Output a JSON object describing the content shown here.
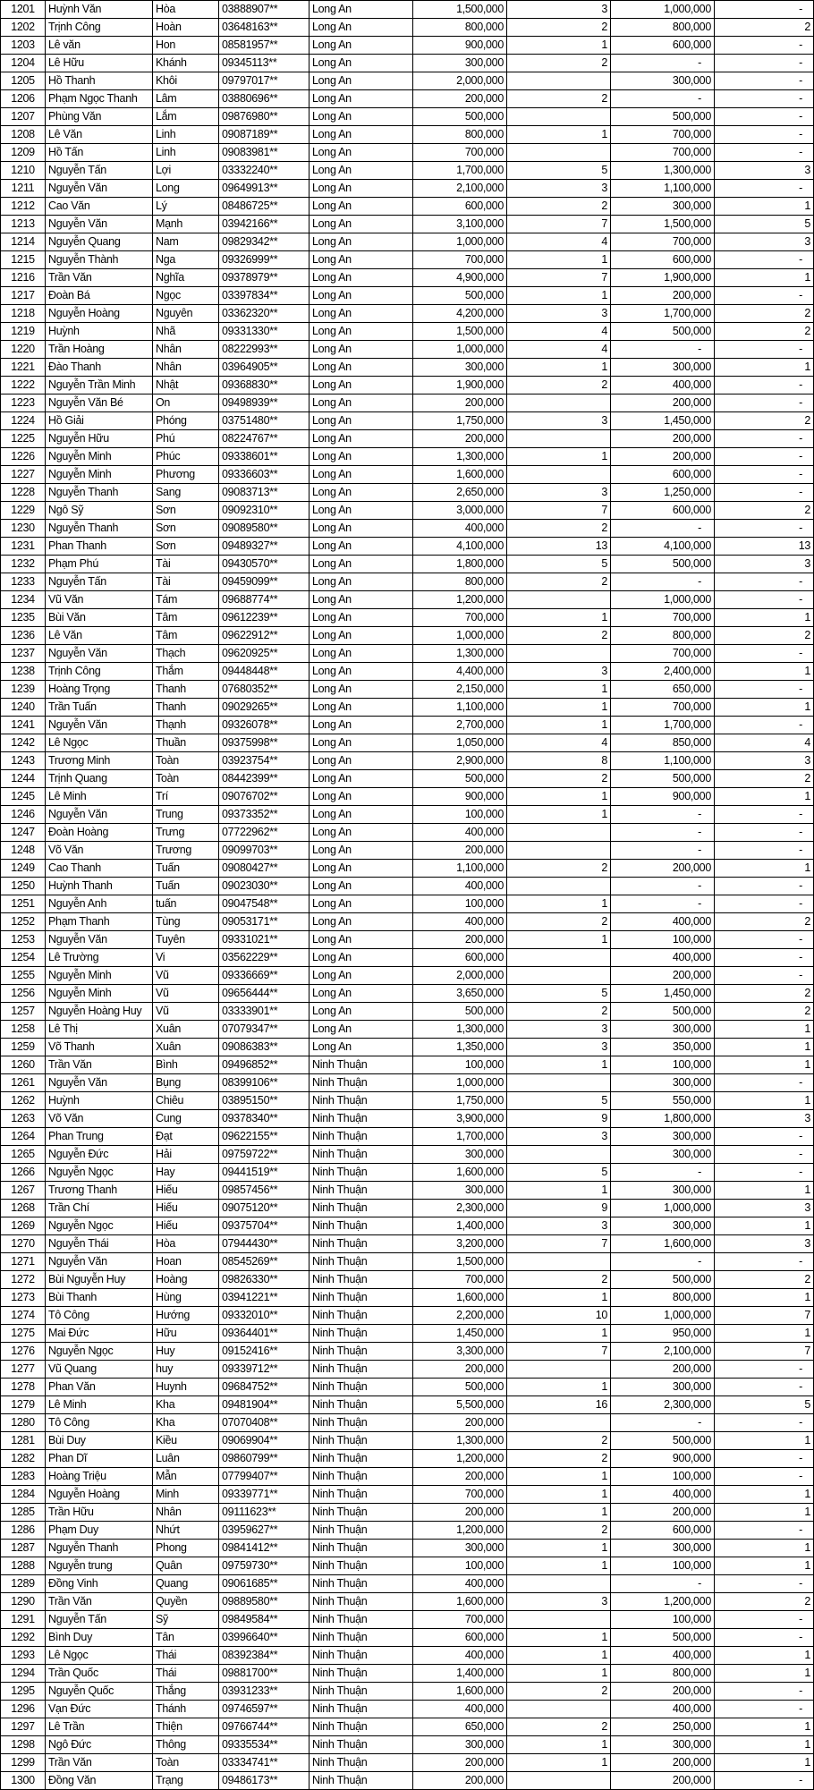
{
  "rows": [
    [
      "1201",
      "Huỳnh Văn",
      "Hòa",
      "03888907**",
      "Long An",
      "1,500,000",
      "3",
      "1,000,000",
      "-"
    ],
    [
      "1202",
      "Trịnh Công",
      "Hoàn",
      "03648163**",
      "Long An",
      "800,000",
      "2",
      "800,000",
      "2"
    ],
    [
      "1203",
      "Lê văn",
      "Hon",
      "08581957**",
      "Long An",
      "900,000",
      "1",
      "600,000",
      "-"
    ],
    [
      "1204",
      "Lê Hữu",
      "Khánh",
      "09345113**",
      "Long An",
      "300,000",
      "2",
      "-",
      "-"
    ],
    [
      "1205",
      "Hồ Thanh",
      "Khôi",
      "09797017**",
      "Long An",
      "2,000,000",
      "",
      "300,000",
      "-"
    ],
    [
      "1206",
      "Phạm Ngọc Thanh",
      "Lâm",
      "03880696**",
      "Long An",
      "200,000",
      "2",
      "-",
      "-"
    ],
    [
      "1207",
      "Phùng Văn",
      "Lắm",
      "09876980**",
      "Long An",
      "500,000",
      "",
      "500,000",
      "-"
    ],
    [
      "1208",
      "Lê Văn",
      "Linh",
      "09087189**",
      "Long An",
      "800,000",
      "1",
      "700,000",
      "-"
    ],
    [
      "1209",
      "Hồ Tấn",
      "Linh",
      "09083981**",
      "Long An",
      "700,000",
      "",
      "700,000",
      "-"
    ],
    [
      "1210",
      "Nguyễn Tấn",
      "Lợi",
      "03332240**",
      "Long An",
      "1,700,000",
      "5",
      "1,300,000",
      "3"
    ],
    [
      "1211",
      "Nguyễn Văn",
      "Long",
      "09649913**",
      "Long An",
      "2,100,000",
      "3",
      "1,100,000",
      "-"
    ],
    [
      "1212",
      "Cao Văn",
      "Lý",
      "08486725**",
      "Long An",
      "600,000",
      "2",
      "300,000",
      "1"
    ],
    [
      "1213",
      "Nguyễn Văn",
      "Mạnh",
      "03942166**",
      "Long An",
      "3,100,000",
      "7",
      "1,500,000",
      "5"
    ],
    [
      "1214",
      "Nguyễn Quang",
      "Nam",
      "09829342**",
      "Long An",
      "1,000,000",
      "4",
      "700,000",
      "3"
    ],
    [
      "1215",
      "Nguyễn Thành",
      "Nga",
      "09326999**",
      "Long An",
      "700,000",
      "1",
      "600,000",
      "-"
    ],
    [
      "1216",
      "Trần Văn",
      "Nghĩa",
      "09378979**",
      "Long An",
      "4,900,000",
      "7",
      "1,900,000",
      "1"
    ],
    [
      "1217",
      "Đoàn Bá",
      "Ngọc",
      "03397834**",
      "Long An",
      "500,000",
      "1",
      "200,000",
      "-"
    ],
    [
      "1218",
      "Nguyễn Hoàng",
      "Nguyên",
      "03362320**",
      "Long An",
      "4,200,000",
      "3",
      "1,700,000",
      "2"
    ],
    [
      "1219",
      "Huỳnh",
      "Nhã",
      "09331330**",
      "Long An",
      "1,500,000",
      "4",
      "500,000",
      "2"
    ],
    [
      "1220",
      "Trần Hoàng",
      "Nhân",
      "08222993**",
      "Long An",
      "1,000,000",
      "4",
      "-",
      "-"
    ],
    [
      "1221",
      "Đào Thanh",
      "Nhân",
      "03964905**",
      "Long An",
      "300,000",
      "1",
      "300,000",
      "1"
    ],
    [
      "1222",
      "Nguyễn Trần Minh",
      "Nhật",
      "09368830**",
      "Long An",
      "1,900,000",
      "2",
      "400,000",
      "-"
    ],
    [
      "1223",
      "Nguyễn Văn Bé",
      "On",
      "09498939**",
      "Long An",
      "200,000",
      "",
      "200,000",
      "-"
    ],
    [
      "1224",
      "Hồ Giải",
      "Phóng",
      "03751480**",
      "Long An",
      "1,750,000",
      "3",
      "1,450,000",
      "2"
    ],
    [
      "1225",
      "Nguyễn Hữu",
      "Phú",
      "08224767**",
      "Long An",
      "200,000",
      "",
      "200,000",
      "-"
    ],
    [
      "1226",
      "Nguyễn Minh",
      "Phúc",
      "09338601**",
      "Long An",
      "1,300,000",
      "1",
      "200,000",
      "-"
    ],
    [
      "1227",
      "Nguyễn Minh",
      "Phương",
      "09336603**",
      "Long An",
      "1,600,000",
      "",
      "600,000",
      "-"
    ],
    [
      "1228",
      "Nguyễn Thanh",
      "Sang",
      "09083713**",
      "Long An",
      "2,650,000",
      "3",
      "1,250,000",
      "-"
    ],
    [
      "1229",
      "Ngô Sỹ",
      "Sơn",
      "09092310**",
      "Long An",
      "3,000,000",
      "7",
      "600,000",
      "2"
    ],
    [
      "1230",
      "Nguyễn Thanh",
      "Sơn",
      "09089580**",
      "Long An",
      "400,000",
      "2",
      "-",
      "-"
    ],
    [
      "1231",
      "Phan Thanh",
      "Sơn",
      "09489327**",
      "Long An",
      "4,100,000",
      "13",
      "4,100,000",
      "13"
    ],
    [
      "1232",
      "Phạm Phú",
      "Tài",
      "09430570**",
      "Long An",
      "1,800,000",
      "5",
      "500,000",
      "3"
    ],
    [
      "1233",
      "Nguyễn Tấn",
      "Tài",
      "09459099**",
      "Long An",
      "800,000",
      "2",
      "-",
      "-"
    ],
    [
      "1234",
      "Vũ Văn",
      "Tám",
      "09688774**",
      "Long An",
      "1,200,000",
      "",
      "1,000,000",
      "-"
    ],
    [
      "1235",
      "Bùi Văn",
      "Tâm",
      "09612239**",
      "Long An",
      "700,000",
      "1",
      "700,000",
      "1"
    ],
    [
      "1236",
      "Lê Văn",
      "Tâm",
      "09622912**",
      "Long An",
      "1,000,000",
      "2",
      "800,000",
      "2"
    ],
    [
      "1237",
      "Nguyễn Văn",
      "Thạch",
      "09620925**",
      "Long An",
      "1,300,000",
      "",
      "700,000",
      "-"
    ],
    [
      "1238",
      "Trịnh Công",
      "Thắm",
      "09448448**",
      "Long An",
      "4,400,000",
      "3",
      "2,400,000",
      "1"
    ],
    [
      "1239",
      "Hoàng Trọng",
      "Thanh",
      "07680352**",
      "Long An",
      "2,150,000",
      "1",
      "650,000",
      "-"
    ],
    [
      "1240",
      "Trần Tuấn",
      "Thanh",
      "09029265**",
      "Long An",
      "1,100,000",
      "1",
      "700,000",
      "1"
    ],
    [
      "1241",
      "Nguyễn Văn",
      "Thạnh",
      "09326078**",
      "Long An",
      "2,700,000",
      "1",
      "1,700,000",
      "-"
    ],
    [
      "1242",
      "Lê Ngọc",
      "Thuần",
      "09375998**",
      "Long An",
      "1,050,000",
      "4",
      "850,000",
      "4"
    ],
    [
      "1243",
      "Trương  Minh",
      "Toàn",
      "03923754**",
      "Long An",
      "2,900,000",
      "8",
      "1,100,000",
      "3"
    ],
    [
      "1244",
      "Trịnh Quang",
      "Toàn",
      "08442399**",
      "Long An",
      "500,000",
      "2",
      "500,000",
      "2"
    ],
    [
      "1245",
      "Lê Minh",
      "Trí",
      "09076702**",
      "Long An",
      "900,000",
      "1",
      "900,000",
      "1"
    ],
    [
      "1246",
      "Nguyễn  Văn",
      "Trung",
      "09373352**",
      "Long An",
      "100,000",
      "1",
      "-",
      "-"
    ],
    [
      "1247",
      "Đoàn Hoàng",
      "Trưng",
      "07722962**",
      "Long An",
      "400,000",
      "",
      "-",
      "-"
    ],
    [
      "1248",
      "Võ  Văn",
      "Trương",
      "09099703**",
      "Long An",
      "200,000",
      "",
      "-",
      "-"
    ],
    [
      "1249",
      "Cao Thanh",
      "Tuấn",
      "09080427**",
      "Long An",
      "1,100,000",
      "2",
      "200,000",
      "1"
    ],
    [
      "1250",
      "Huỳnh Thanh",
      "Tuấn",
      "09023030**",
      "Long An",
      "400,000",
      "",
      "-",
      "-"
    ],
    [
      "1251",
      "Nguyễn Anh",
      "tuấn",
      "09047548**",
      "Long An",
      "100,000",
      "1",
      "-",
      "-"
    ],
    [
      "1252",
      "Phạm Thanh",
      "Tùng",
      "09053171**",
      "Long An",
      "400,000",
      "2",
      "400,000",
      "2"
    ],
    [
      "1253",
      "Nguyễn Văn",
      "Tuyên",
      "09331021**",
      "Long An",
      "200,000",
      "1",
      "100,000",
      "-"
    ],
    [
      "1254",
      "Lê Trường",
      "Vi",
      "03562229**",
      "Long An",
      "600,000",
      "",
      "400,000",
      "-"
    ],
    [
      "1255",
      "Nguyễn Minh",
      "Vũ",
      "09336669**",
      "Long An",
      "2,000,000",
      "",
      "200,000",
      "-"
    ],
    [
      "1256",
      "Nguyễn Minh",
      "Vũ",
      "09656444**",
      "Long An",
      "3,650,000",
      "5",
      "1,450,000",
      "2"
    ],
    [
      "1257",
      "Nguyễn Hoàng Huy",
      "Vũ",
      "03333901**",
      "Long An",
      "500,000",
      "2",
      "500,000",
      "2"
    ],
    [
      "1258",
      "Lê Thị",
      "Xuân",
      "07079347**",
      "Long An",
      "1,300,000",
      "3",
      "300,000",
      "1"
    ],
    [
      "1259",
      "Võ Thanh",
      "Xuân",
      "09086383**",
      "Long An",
      "1,350,000",
      "3",
      "350,000",
      "1"
    ],
    [
      "1260",
      "Trần Văn",
      "Bình",
      "09496852**",
      "Ninh Thuận",
      "100,000",
      "1",
      "100,000",
      "1"
    ],
    [
      "1261",
      "Nguyễn Văn",
      "Bụng",
      "08399106**",
      "Ninh Thuận",
      "1,000,000",
      "",
      "300,000",
      "-"
    ],
    [
      "1262",
      "Huỳnh",
      "Chiêu",
      "03895150**",
      "Ninh Thuận",
      "1,750,000",
      "5",
      "550,000",
      "1"
    ],
    [
      "1263",
      "Võ Văn",
      "Cung",
      "09378340**",
      "Ninh Thuận",
      "3,900,000",
      "9",
      "1,800,000",
      "3"
    ],
    [
      "1264",
      "Phan Trung",
      "Đạt",
      "09622155**",
      "Ninh Thuận",
      "1,700,000",
      "3",
      "300,000",
      "-"
    ],
    [
      "1265",
      "Nguyễn Đức",
      "Hải",
      "09759722**",
      "Ninh Thuận",
      "300,000",
      "",
      "300,000",
      "-"
    ],
    [
      "1266",
      "Nguyễn Ngọc",
      "Hay",
      "09441519**",
      "Ninh Thuận",
      "1,600,000",
      "5",
      "-",
      "-"
    ],
    [
      "1267",
      "Trương Thanh",
      "Hiếu",
      "09857456**",
      "Ninh Thuận",
      "300,000",
      "1",
      "300,000",
      "1"
    ],
    [
      "1268",
      "Trần  Chí",
      "Hiếu",
      "09075120**",
      "Ninh Thuận",
      "2,300,000",
      "9",
      "1,000,000",
      "3"
    ],
    [
      "1269",
      "Nguyễn   Ngọc",
      "Hiếu",
      "09375704**",
      "Ninh Thuận",
      "1,400,000",
      "3",
      "300,000",
      "1"
    ],
    [
      "1270",
      "Nguyễn Thái",
      "Hòa",
      "07944430**",
      "Ninh Thuận",
      "3,200,000",
      "7",
      "1,600,000",
      "3"
    ],
    [
      "1271",
      "Nguyễn Văn",
      "Hoan",
      "08545269**",
      "Ninh Thuận",
      "1,500,000",
      "",
      "-",
      "-"
    ],
    [
      "1272",
      "Bùi Nguyễn Huy",
      "Hoàng",
      "09826330**",
      "Ninh Thuận",
      "700,000",
      "2",
      "500,000",
      "2"
    ],
    [
      "1273",
      "Bùi Thanh",
      "Hùng",
      "03941221**",
      "Ninh Thuận",
      "1,600,000",
      "1",
      "800,000",
      "1"
    ],
    [
      "1274",
      "Tô Công",
      "Hướng",
      "09332010**",
      "Ninh Thuận",
      "2,200,000",
      "10",
      "1,000,000",
      "7"
    ],
    [
      "1275",
      "Mai Đức",
      "Hữu",
      "09364401**",
      "Ninh Thuận",
      "1,450,000",
      "1",
      "950,000",
      "1"
    ],
    [
      "1276",
      "Nguyễn Ngọc",
      "Huy",
      "09152416**",
      "Ninh Thuận",
      "3,300,000",
      "7",
      "2,100,000",
      "7"
    ],
    [
      "1277",
      "Vũ  Quang",
      "huy",
      "09339712**",
      "Ninh Thuận",
      "200,000",
      "",
      "200,000",
      "-"
    ],
    [
      "1278",
      "Phan Văn",
      "Huynh",
      "09684752**",
      "Ninh Thuận",
      "500,000",
      "1",
      "300,000",
      "-"
    ],
    [
      "1279",
      "Lê Minh",
      "Kha",
      "09481904**",
      "Ninh Thuận",
      "5,500,000",
      "16",
      "2,300,000",
      "5"
    ],
    [
      "1280",
      "Tô Công",
      "Kha",
      "07070408**",
      "Ninh Thuận",
      "200,000",
      "",
      "-",
      "-"
    ],
    [
      "1281",
      "Bùi Duy",
      "Kiều",
      "09069904**",
      "Ninh Thuận",
      "1,300,000",
      "2",
      "500,000",
      "1"
    ],
    [
      "1282",
      "Phan Dĩ",
      "Luân",
      "09860799**",
      "Ninh Thuận",
      "1,200,000",
      "2",
      "900,000",
      "-"
    ],
    [
      "1283",
      "Hoàng Triệu",
      "Mẫn",
      "07799407**",
      "Ninh Thuận",
      "200,000",
      "1",
      "100,000",
      "-"
    ],
    [
      "1284",
      "Nguyễn Hoàng",
      "Minh",
      "09339771**",
      "Ninh Thuận",
      "700,000",
      "1",
      "400,000",
      "1"
    ],
    [
      "1285",
      "Trần Hữu",
      "Nhân",
      "09111623**",
      "Ninh Thuận",
      "200,000",
      "1",
      "200,000",
      "1"
    ],
    [
      "1286",
      "Phạm Duy",
      "Nhứt",
      "03959627**",
      "Ninh Thuận",
      "1,200,000",
      "2",
      "600,000",
      "-"
    ],
    [
      "1287",
      "Nguyễn  Thanh",
      "Phong",
      "09841412**",
      "Ninh Thuận",
      "300,000",
      "1",
      "300,000",
      "1"
    ],
    [
      "1288",
      "Nguyễn trung",
      "Quân",
      "09759730**",
      "Ninh Thuận",
      "100,000",
      "1",
      "100,000",
      "1"
    ],
    [
      "1289",
      "Đồng Vinh",
      "Quang",
      "09061685**",
      "Ninh Thuận",
      "400,000",
      "",
      "-",
      "-"
    ],
    [
      "1290",
      "Trần  Văn",
      "Quyền",
      "09889580**",
      "Ninh Thuận",
      "1,600,000",
      "3",
      "1,200,000",
      "2"
    ],
    [
      "1291",
      "Nguyễn Tấn",
      "Sỹ",
      "09849584**",
      "Ninh Thuận",
      "700,000",
      "",
      "100,000",
      "-"
    ],
    [
      "1292",
      "Bình Duy",
      "Tân",
      "03996640**",
      "Ninh Thuận",
      "600,000",
      "1",
      "500,000",
      "-"
    ],
    [
      "1293",
      "Lê Ngọc",
      "Thái",
      "08392384**",
      "Ninh Thuận",
      "400,000",
      "1",
      "400,000",
      "1"
    ],
    [
      "1294",
      "Trần Quốc",
      "Thái",
      "09881700**",
      "Ninh Thuận",
      "1,400,000",
      "1",
      "800,000",
      "1"
    ],
    [
      "1295",
      "Nguyễn Quốc",
      "Thắng",
      "03931233**",
      "Ninh Thuận",
      "1,600,000",
      "2",
      "200,000",
      "-"
    ],
    [
      "1296",
      "Vạn Đức",
      "Thánh",
      "09746597**",
      "Ninh Thuận",
      "400,000",
      "",
      "400,000",
      "-"
    ],
    [
      "1297",
      "Lê Trần",
      "Thiện",
      "09766744**",
      "Ninh Thuận",
      "650,000",
      "2",
      "250,000",
      "1"
    ],
    [
      "1298",
      "Ngô Đức",
      "Thông",
      "09335534**",
      "Ninh Thuận",
      "300,000",
      "1",
      "300,000",
      "1"
    ],
    [
      "1299",
      "Trần Văn",
      "Toàn",
      "03334741**",
      "Ninh Thuận",
      "200,000",
      "1",
      "200,000",
      "1"
    ],
    [
      "1300",
      "Đồng Văn",
      "Trạng",
      "09486173**",
      "Ninh Thuận",
      "200,000",
      "",
      "200,000",
      "-"
    ]
  ]
}
